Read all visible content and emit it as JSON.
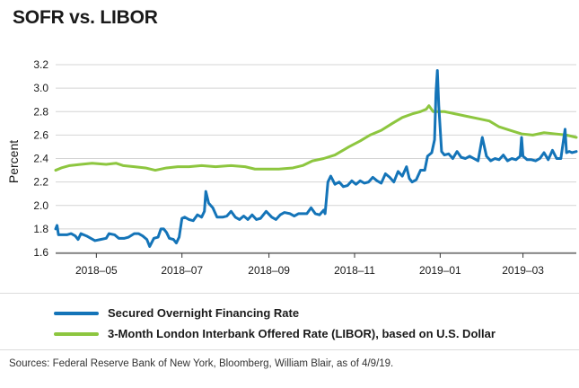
{
  "chart_data": {
    "type": "line",
    "title": "SOFR vs. LIBOR",
    "xlabel": "",
    "ylabel": "Percent",
    "ylim": [
      1.6,
      3.2
    ],
    "yticks": [
      "1.6",
      "1.8",
      "2.0",
      "2.2",
      "2.4",
      "2.6",
      "2.8",
      "3.0",
      "3.2"
    ],
    "xlim": [
      "2018-04-02",
      "2019-04-08"
    ],
    "xticks": [
      {
        "date": "2018-05-01",
        "label": "2018–05"
      },
      {
        "date": "2018-07-01",
        "label": "2018–07"
      },
      {
        "date": "2018-09-01",
        "label": "2018–09"
      },
      {
        "date": "2018-11-01",
        "label": "2018–11"
      },
      {
        "date": "2019-01-01",
        "label": "2019–01"
      },
      {
        "date": "2019-03-01",
        "label": "2019–03"
      }
    ],
    "grid": "horizontal",
    "series": [
      {
        "name": "Secured Overnight Financing Rate",
        "color": "#1474b8",
        "points": [
          [
            "2018-04-02",
            1.8
          ],
          [
            "2018-04-03",
            1.83
          ],
          [
            "2018-04-04",
            1.75
          ],
          [
            "2018-04-06",
            1.75
          ],
          [
            "2018-04-10",
            1.75
          ],
          [
            "2018-04-13",
            1.76
          ],
          [
            "2018-04-16",
            1.74
          ],
          [
            "2018-04-18",
            1.71
          ],
          [
            "2018-04-20",
            1.76
          ],
          [
            "2018-04-24",
            1.74
          ],
          [
            "2018-04-27",
            1.72
          ],
          [
            "2018-04-30",
            1.7
          ],
          [
            "2018-05-04",
            1.71
          ],
          [
            "2018-05-08",
            1.72
          ],
          [
            "2018-05-10",
            1.76
          ],
          [
            "2018-05-14",
            1.75
          ],
          [
            "2018-05-17",
            1.72
          ],
          [
            "2018-05-21",
            1.72
          ],
          [
            "2018-05-24",
            1.73
          ],
          [
            "2018-05-28",
            1.76
          ],
          [
            "2018-05-31",
            1.76
          ],
          [
            "2018-06-03",
            1.74
          ],
          [
            "2018-06-06",
            1.71
          ],
          [
            "2018-06-08",
            1.65
          ],
          [
            "2018-06-11",
            1.72
          ],
          [
            "2018-06-14",
            1.73
          ],
          [
            "2018-06-16",
            1.8
          ],
          [
            "2018-06-18",
            1.8
          ],
          [
            "2018-06-20",
            1.77
          ],
          [
            "2018-06-22",
            1.72
          ],
          [
            "2018-06-25",
            1.71
          ],
          [
            "2018-06-27",
            1.68
          ],
          [
            "2018-06-29",
            1.73
          ],
          [
            "2018-07-01",
            1.89
          ],
          [
            "2018-07-03",
            1.9
          ],
          [
            "2018-07-06",
            1.88
          ],
          [
            "2018-07-09",
            1.87
          ],
          [
            "2018-07-12",
            1.92
          ],
          [
            "2018-07-15",
            1.9
          ],
          [
            "2018-07-17",
            1.95
          ],
          [
            "2018-07-18",
            2.12
          ],
          [
            "2018-07-20",
            2.02
          ],
          [
            "2018-07-23",
            1.98
          ],
          [
            "2018-07-26",
            1.9
          ],
          [
            "2018-07-30",
            1.9
          ],
          [
            "2018-08-02",
            1.91
          ],
          [
            "2018-08-05",
            1.95
          ],
          [
            "2018-08-08",
            1.9
          ],
          [
            "2018-08-11",
            1.88
          ],
          [
            "2018-08-14",
            1.91
          ],
          [
            "2018-08-17",
            1.88
          ],
          [
            "2018-08-20",
            1.92
          ],
          [
            "2018-08-23",
            1.88
          ],
          [
            "2018-08-26",
            1.89
          ],
          [
            "2018-08-30",
            1.95
          ],
          [
            "2018-09-03",
            1.9
          ],
          [
            "2018-09-06",
            1.88
          ],
          [
            "2018-09-09",
            1.92
          ],
          [
            "2018-09-12",
            1.94
          ],
          [
            "2018-09-16",
            1.93
          ],
          [
            "2018-09-19",
            1.91
          ],
          [
            "2018-09-22",
            1.93
          ],
          [
            "2018-09-25",
            1.93
          ],
          [
            "2018-09-28",
            1.93
          ],
          [
            "2018-10-01",
            1.98
          ],
          [
            "2018-10-04",
            1.93
          ],
          [
            "2018-10-07",
            1.92
          ],
          [
            "2018-10-10",
            1.96
          ],
          [
            "2018-10-11",
            1.93
          ],
          [
            "2018-10-13",
            2.2
          ],
          [
            "2018-10-15",
            2.25
          ],
          [
            "2018-10-18",
            2.18
          ],
          [
            "2018-10-21",
            2.2
          ],
          [
            "2018-10-24",
            2.16
          ],
          [
            "2018-10-27",
            2.17
          ],
          [
            "2018-10-30",
            2.21
          ],
          [
            "2018-11-02",
            2.18
          ],
          [
            "2018-11-05",
            2.21
          ],
          [
            "2018-11-08",
            2.19
          ],
          [
            "2018-11-11",
            2.2
          ],
          [
            "2018-11-14",
            2.24
          ],
          [
            "2018-11-17",
            2.21
          ],
          [
            "2018-11-20",
            2.19
          ],
          [
            "2018-11-23",
            2.27
          ],
          [
            "2018-11-26",
            2.24
          ],
          [
            "2018-11-29",
            2.2
          ],
          [
            "2018-12-02",
            2.29
          ],
          [
            "2018-12-05",
            2.25
          ],
          [
            "2018-12-08",
            2.33
          ],
          [
            "2018-12-10",
            2.23
          ],
          [
            "2018-12-12",
            2.2
          ],
          [
            "2018-12-15",
            2.22
          ],
          [
            "2018-12-18",
            2.3
          ],
          [
            "2018-12-21",
            2.3
          ],
          [
            "2018-12-23",
            2.42
          ],
          [
            "2018-12-26",
            2.45
          ],
          [
            "2018-12-28",
            2.56
          ],
          [
            "2018-12-29",
            2.96
          ],
          [
            "2018-12-30",
            3.15
          ],
          [
            "2018-12-31",
            2.85
          ],
          [
            "2019-01-02",
            2.46
          ],
          [
            "2019-01-04",
            2.43
          ],
          [
            "2019-01-07",
            2.44
          ],
          [
            "2019-01-10",
            2.4
          ],
          [
            "2019-01-13",
            2.46
          ],
          [
            "2019-01-16",
            2.41
          ],
          [
            "2019-01-19",
            2.4
          ],
          [
            "2019-01-22",
            2.42
          ],
          [
            "2019-01-25",
            2.4
          ],
          [
            "2019-01-28",
            2.38
          ],
          [
            "2019-01-31",
            2.58
          ],
          [
            "2019-02-03",
            2.42
          ],
          [
            "2019-02-06",
            2.38
          ],
          [
            "2019-02-09",
            2.4
          ],
          [
            "2019-02-12",
            2.39
          ],
          [
            "2019-02-15",
            2.43
          ],
          [
            "2019-02-18",
            2.38
          ],
          [
            "2019-02-21",
            2.4
          ],
          [
            "2019-02-24",
            2.39
          ],
          [
            "2019-02-27",
            2.42
          ],
          [
            "2019-02-28",
            2.58
          ],
          [
            "2019-03-01",
            2.42
          ],
          [
            "2019-03-04",
            2.39
          ],
          [
            "2019-03-07",
            2.39
          ],
          [
            "2019-03-10",
            2.38
          ],
          [
            "2019-03-13",
            2.4
          ],
          [
            "2019-03-16",
            2.45
          ],
          [
            "2019-03-19",
            2.39
          ],
          [
            "2019-03-22",
            2.47
          ],
          [
            "2019-03-25",
            2.4
          ],
          [
            "2019-03-28",
            2.4
          ],
          [
            "2019-03-31",
            2.65
          ],
          [
            "2019-04-01",
            2.45
          ],
          [
            "2019-04-03",
            2.46
          ],
          [
            "2019-04-05",
            2.45
          ],
          [
            "2019-04-08",
            2.46
          ]
        ]
      },
      {
        "name": "3-Month London Interbank Offered Rate (LIBOR), based on U.S. Dollar",
        "color": "#8dc63f",
        "points": [
          [
            "2018-04-02",
            2.3
          ],
          [
            "2018-04-06",
            2.32
          ],
          [
            "2018-04-12",
            2.34
          ],
          [
            "2018-04-20",
            2.35
          ],
          [
            "2018-04-28",
            2.36
          ],
          [
            "2018-05-08",
            2.35
          ],
          [
            "2018-05-15",
            2.36
          ],
          [
            "2018-05-20",
            2.34
          ],
          [
            "2018-05-28",
            2.33
          ],
          [
            "2018-06-05",
            2.32
          ],
          [
            "2018-06-12",
            2.3
          ],
          [
            "2018-06-20",
            2.32
          ],
          [
            "2018-06-28",
            2.33
          ],
          [
            "2018-07-06",
            2.33
          ],
          [
            "2018-07-15",
            2.34
          ],
          [
            "2018-07-25",
            2.33
          ],
          [
            "2018-08-05",
            2.34
          ],
          [
            "2018-08-15",
            2.33
          ],
          [
            "2018-08-22",
            2.31
          ],
          [
            "2018-08-30",
            2.31
          ],
          [
            "2018-09-08",
            2.31
          ],
          [
            "2018-09-18",
            2.32
          ],
          [
            "2018-09-25",
            2.34
          ],
          [
            "2018-10-02",
            2.38
          ],
          [
            "2018-10-10",
            2.4
          ],
          [
            "2018-10-18",
            2.43
          ],
          [
            "2018-10-28",
            2.5
          ],
          [
            "2018-11-05",
            2.55
          ],
          [
            "2018-11-12",
            2.6
          ],
          [
            "2018-11-20",
            2.64
          ],
          [
            "2018-11-28",
            2.7
          ],
          [
            "2018-12-05",
            2.75
          ],
          [
            "2018-12-12",
            2.78
          ],
          [
            "2018-12-18",
            2.8
          ],
          [
            "2018-12-22",
            2.82
          ],
          [
            "2018-12-24",
            2.85
          ],
          [
            "2018-12-27",
            2.8
          ],
          [
            "2019-01-04",
            2.8
          ],
          [
            "2019-01-12",
            2.78
          ],
          [
            "2019-01-20",
            2.76
          ],
          [
            "2019-01-28",
            2.74
          ],
          [
            "2019-02-05",
            2.72
          ],
          [
            "2019-02-12",
            2.67
          ],
          [
            "2019-02-20",
            2.64
          ],
          [
            "2019-02-28",
            2.61
          ],
          [
            "2019-03-08",
            2.6
          ],
          [
            "2019-03-16",
            2.62
          ],
          [
            "2019-03-24",
            2.61
          ],
          [
            "2019-04-01",
            2.6
          ],
          [
            "2019-04-08",
            2.58
          ]
        ]
      }
    ]
  },
  "source_note": "Sources: Federal Reserve Bank of New York, Bloomberg, William Blair, as of 4/9/19."
}
